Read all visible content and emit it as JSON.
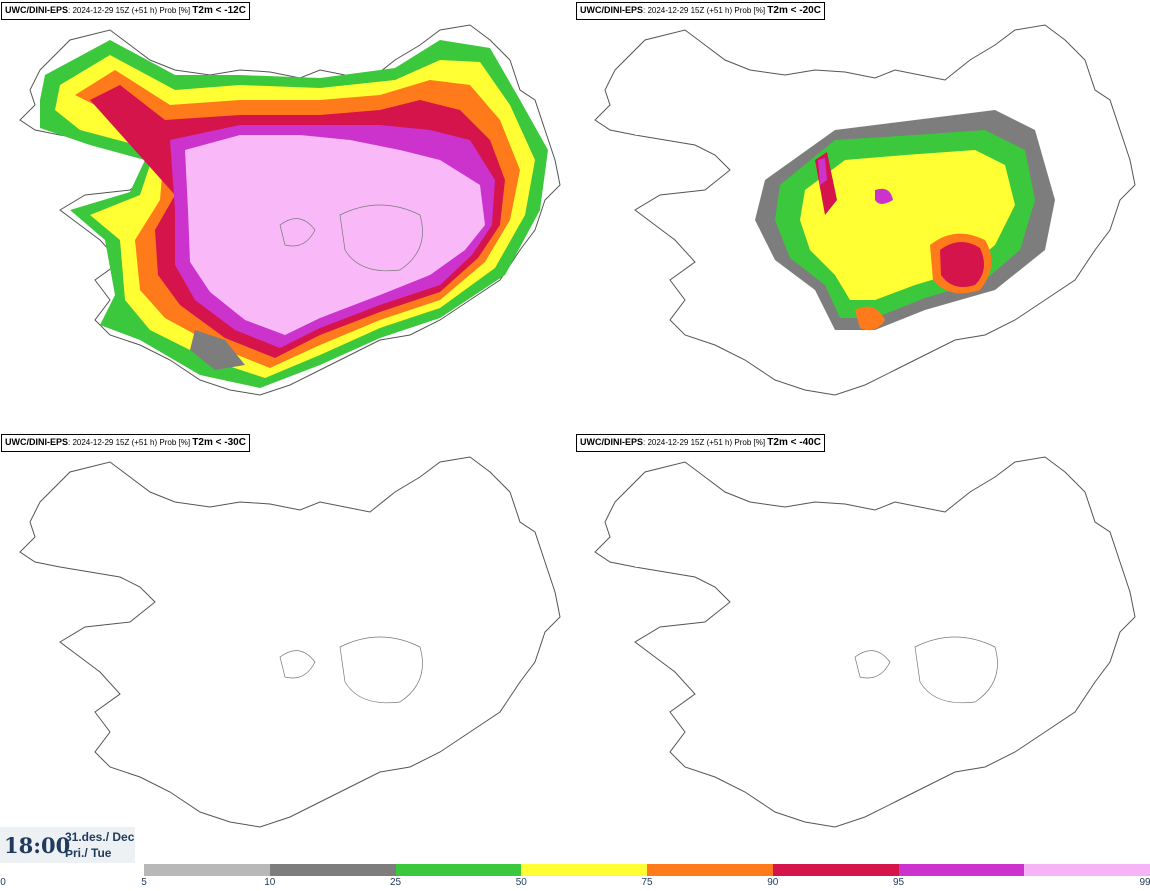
{
  "panels": [
    {
      "id": "p1",
      "model": "UWC/DINI-EPS",
      "info": ": 2024-12-29 15Z (+51 h) Prob [%] ",
      "variable": "T2m < -12C"
    },
    {
      "id": "p2",
      "model": "UWC/DINI-EPS",
      "info": ": 2024-12-29 15Z (+51 h) Prob [%] ",
      "variable": "T2m < -20C"
    },
    {
      "id": "p3",
      "model": "UWC/DINI-EPS",
      "info": ": 2024-12-29 15Z (+51 h) Prob [%] ",
      "variable": "T2m < -30C"
    },
    {
      "id": "p4",
      "model": "UWC/DINI-EPS",
      "info": ": 2024-12-29 15Z (+51 h) Prob [%] ",
      "variable": "T2m < -40C"
    }
  ],
  "valid_time": {
    "time": "18:00",
    "day_line1": "31.des./ Dec",
    "day_line2": "Þri./ Tue"
  },
  "legend": {
    "colors": [
      "#b8b8b8",
      "#7d7d7d",
      "#3cc83c",
      "#ffff33",
      "#ff7a1a",
      "#d4144a",
      "#cc33cc",
      "#f6b4f6"
    ],
    "ticks": [
      "0",
      "5",
      "10",
      "25",
      "50",
      "75",
      "90",
      "95",
      "99"
    ]
  },
  "map_colors": {
    "land_outline": "#555555",
    "pink": "#f9b9f9",
    "magenta": "#cc33cc",
    "red": "#d4144a",
    "orange": "#ff7a1a",
    "yellow": "#ffff33",
    "green": "#3cc83c",
    "dark_grey": "#7d7d7d",
    "light_grey": "#b8b8b8"
  }
}
